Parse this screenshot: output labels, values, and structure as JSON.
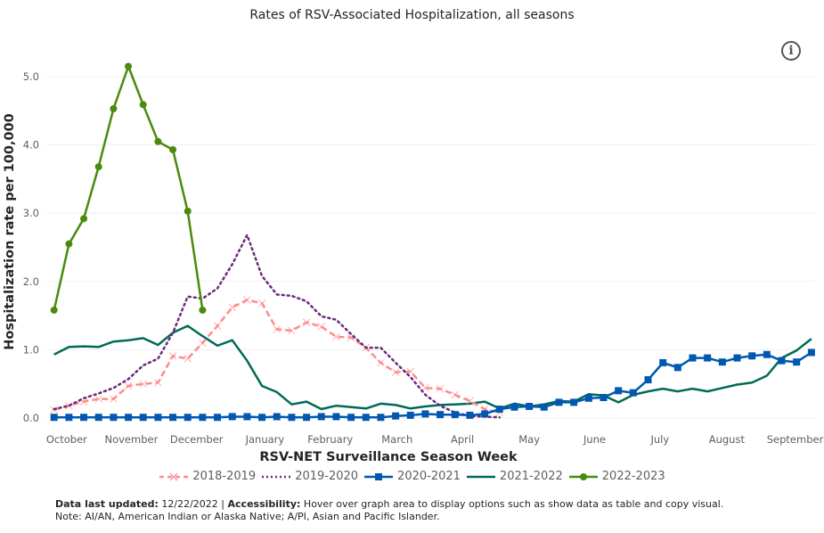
{
  "chart_data": {
    "type": "line",
    "title": "Rates of RSV-Associated Hospitalization, all seasons",
    "xlabel": "RSV-NET Surveillance Season Week",
    "ylabel": "Hospitalization rate per 100,000",
    "ylim": [
      0,
      5.0
    ],
    "yticks": [
      "0.0",
      "1.0",
      "2.0",
      "3.0",
      "4.0",
      "5.0"
    ],
    "xtick_labels": [
      "October",
      "November",
      "December",
      "January",
      "February",
      "March",
      "April",
      "May",
      "June",
      "July",
      "August",
      "September"
    ],
    "weeks": 52,
    "grid": true,
    "legend_position": "bottom",
    "series": [
      {
        "name": "2018-2019",
        "color": "#ff8b8b",
        "style": "dashed-x",
        "values": [
          0.12,
          0.18,
          0.24,
          0.28,
          0.28,
          0.47,
          0.5,
          0.52,
          0.91,
          0.87,
          1.1,
          1.35,
          1.62,
          1.73,
          1.68,
          1.3,
          1.28,
          1.4,
          1.34,
          1.19,
          1.18,
          1.03,
          0.81,
          0.67,
          0.68,
          0.44,
          0.43,
          0.34,
          0.25,
          0.13,
          0.08
        ]
      },
      {
        "name": "2019-2020",
        "color": "#6b2a7a",
        "style": "dotted",
        "values": [
          0.13,
          0.18,
          0.29,
          0.36,
          0.44,
          0.57,
          0.77,
          0.87,
          1.25,
          1.78,
          1.75,
          1.9,
          2.25,
          2.68,
          2.08,
          1.81,
          1.79,
          1.71,
          1.49,
          1.44,
          1.23,
          1.03,
          1.03,
          0.81,
          0.6,
          0.34,
          0.18,
          0.08,
          0.03,
          0.02,
          0.01
        ]
      },
      {
        "name": "2020-2021",
        "color": "#0058b0",
        "style": "square",
        "values": [
          0.01,
          0.01,
          0.01,
          0.01,
          0.01,
          0.01,
          0.01,
          0.01,
          0.01,
          0.01,
          0.01,
          0.01,
          0.02,
          0.02,
          0.01,
          0.02,
          0.01,
          0.01,
          0.02,
          0.02,
          0.01,
          0.01,
          0.01,
          0.03,
          0.04,
          0.06,
          0.05,
          0.05,
          0.04,
          0.06,
          0.13,
          0.16,
          0.17,
          0.16,
          0.23,
          0.23,
          0.29,
          0.3,
          0.4,
          0.37,
          0.56,
          0.81,
          0.74,
          0.88,
          0.88,
          0.82,
          0.88,
          0.91,
          0.93,
          0.84,
          0.82,
          0.96
        ]
      },
      {
        "name": "2021-2022",
        "color": "#006a57",
        "style": "solid",
        "values": [
          0.93,
          1.04,
          1.05,
          1.04,
          1.12,
          1.14,
          1.17,
          1.07,
          1.25,
          1.35,
          1.2,
          1.06,
          1.14,
          0.84,
          0.47,
          0.38,
          0.2,
          0.24,
          0.13,
          0.18,
          0.16,
          0.14,
          0.21,
          0.19,
          0.14,
          0.17,
          0.19,
          0.2,
          0.21,
          0.24,
          0.14,
          0.21,
          0.17,
          0.2,
          0.25,
          0.24,
          0.35,
          0.33,
          0.23,
          0.34,
          0.39,
          0.43,
          0.39,
          0.43,
          0.39,
          0.44,
          0.49,
          0.52,
          0.62,
          0.88,
          0.99,
          1.16
        ]
      },
      {
        "name": "2022-2023",
        "color": "#4a8a0c",
        "style": "circle",
        "values": [
          1.58,
          2.55,
          2.92,
          3.68,
          4.53,
          5.15,
          4.59,
          4.05,
          3.93,
          3.03,
          1.58
        ]
      }
    ]
  },
  "info_icon": "i",
  "footer": {
    "updated_label": "Data last updated:",
    "updated_value": "12/22/2022",
    "separator": "|",
    "accessibility_label": "Accessibility:",
    "accessibility_text": "Hover over graph area to display options such as show data as table and copy visual.",
    "note": "Note: AI/AN, American Indian or Alaska Native; A/PI, Asian and Pacific Islander."
  }
}
